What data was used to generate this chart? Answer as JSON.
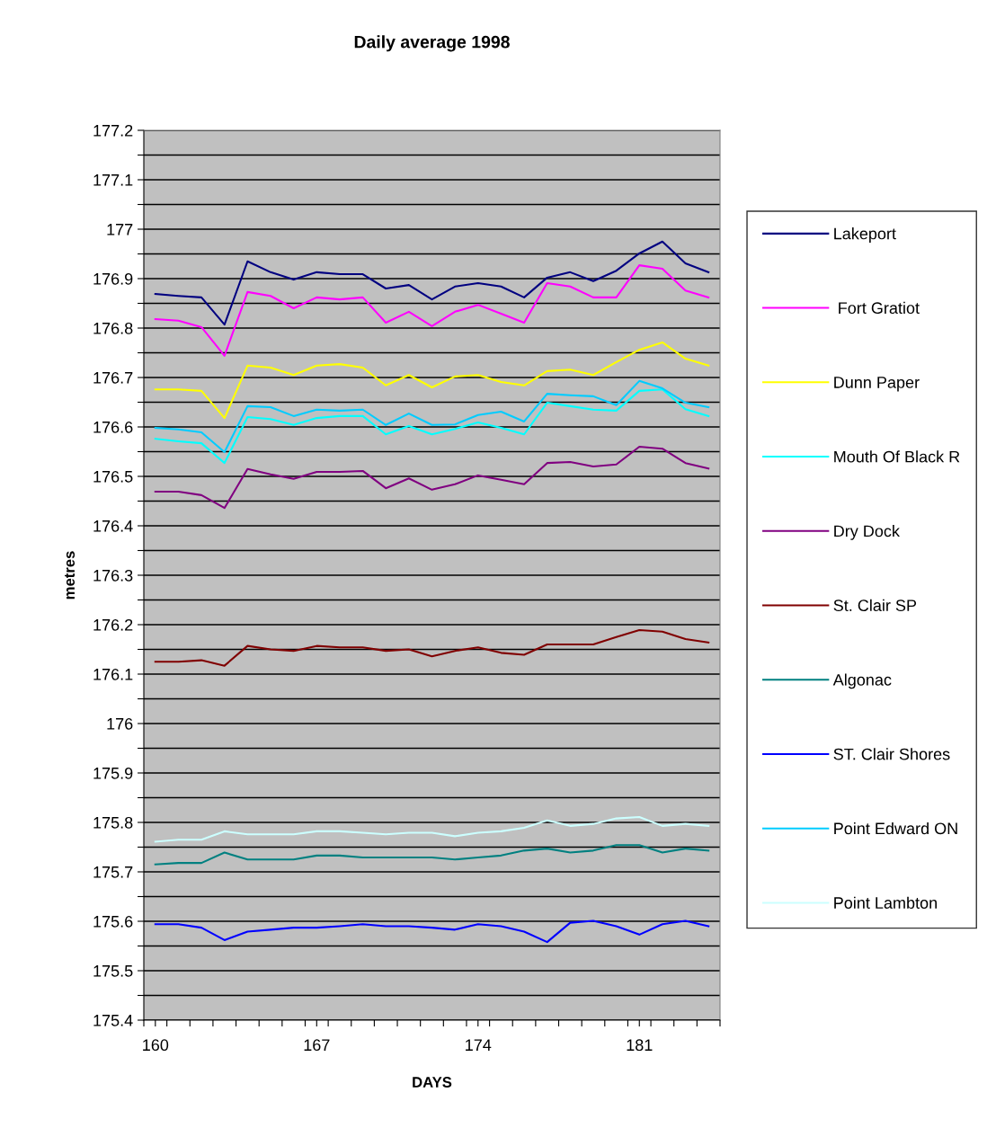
{
  "chart_data": {
    "type": "line",
    "title": "Daily average 1998",
    "xlabel": "DAYS",
    "ylabel": "metres",
    "x": [
      160,
      161,
      162,
      163,
      164,
      165,
      166,
      167,
      168,
      169,
      170,
      171,
      172,
      173,
      174,
      175,
      176,
      177,
      178,
      179,
      180,
      181,
      182,
      183,
      184
    ],
    "series": [
      {
        "name": "Lakeport",
        "color": "#000080",
        "values": [
          176.869,
          176.865,
          176.862,
          176.807,
          176.935,
          176.913,
          176.898,
          176.913,
          176.909,
          176.909,
          176.88,
          176.887,
          176.858,
          176.884,
          176.891,
          176.884,
          176.862,
          176.902,
          176.913,
          176.895,
          176.916,
          176.951,
          176.975,
          176.931,
          176.913
        ]
      },
      {
        "name": " Fort Gratiot",
        "color": "#ff00ff",
        "values": [
          176.818,
          176.815,
          176.802,
          176.744,
          176.873,
          176.865,
          176.84,
          176.862,
          176.858,
          176.862,
          176.811,
          176.833,
          176.804,
          176.833,
          176.847,
          176.829,
          176.811,
          176.891,
          176.884,
          176.862,
          176.862,
          176.927,
          176.92,
          176.876,
          176.862
        ]
      },
      {
        "name": "Dunn Paper",
        "color": "#ffff00",
        "values": [
          176.676,
          176.676,
          176.673,
          176.618,
          176.724,
          176.72,
          176.705,
          176.724,
          176.727,
          176.72,
          176.684,
          176.705,
          176.68,
          176.702,
          176.705,
          176.691,
          176.684,
          176.713,
          176.716,
          176.705,
          176.731,
          176.756,
          176.771,
          176.738,
          176.724
        ]
      },
      {
        "name": "Mouth Of Black R",
        "color": "#00ffff",
        "values": [
          176.576,
          176.571,
          176.567,
          176.527,
          176.62,
          176.616,
          176.604,
          176.618,
          176.622,
          176.622,
          176.585,
          176.602,
          176.585,
          176.596,
          176.609,
          176.598,
          176.585,
          176.649,
          176.642,
          176.635,
          176.633,
          176.673,
          176.676,
          176.636,
          176.622
        ]
      },
      {
        "name": "Dry Dock",
        "color": "#800080",
        "values": [
          176.469,
          176.469,
          176.462,
          176.436,
          176.515,
          176.504,
          176.495,
          176.509,
          176.509,
          176.511,
          176.476,
          176.496,
          176.473,
          176.484,
          176.502,
          176.493,
          176.484,
          176.527,
          176.529,
          176.52,
          176.524,
          176.56,
          176.556,
          176.527,
          176.516
        ]
      },
      {
        "name": "St. Clair SP",
        "color": "#800000",
        "values": [
          176.125,
          176.125,
          176.128,
          176.117,
          176.157,
          176.15,
          176.147,
          176.157,
          176.154,
          176.154,
          176.147,
          176.15,
          176.136,
          176.147,
          176.154,
          176.143,
          176.139,
          176.16,
          176.16,
          176.16,
          176.175,
          176.189,
          176.186,
          176.171,
          176.164
        ]
      },
      {
        "name": "Algonac",
        "color": "#008080",
        "values": [
          175.715,
          175.718,
          175.718,
          175.739,
          175.725,
          175.725,
          175.725,
          175.733,
          175.733,
          175.729,
          175.729,
          175.729,
          175.729,
          175.725,
          175.729,
          175.733,
          175.743,
          175.747,
          175.739,
          175.743,
          175.754,
          175.754,
          175.739,
          175.747,
          175.743
        ]
      },
      {
        "name": "ST. Clair Shores",
        "color": "#0000ff",
        "values": [
          175.594,
          175.594,
          175.587,
          175.562,
          175.579,
          175.583,
          175.587,
          175.587,
          175.59,
          175.594,
          175.59,
          175.59,
          175.587,
          175.583,
          175.594,
          175.59,
          175.579,
          175.558,
          175.597,
          175.601,
          175.59,
          175.573,
          175.594,
          175.601,
          175.59
        ]
      },
      {
        "name": "Point Edward ON",
        "color": "#00ccff",
        "values": [
          176.598,
          176.595,
          176.589,
          176.549,
          176.642,
          176.64,
          176.622,
          176.635,
          176.633,
          176.635,
          176.604,
          176.627,
          176.604,
          176.605,
          176.624,
          176.631,
          176.611,
          176.667,
          176.664,
          176.662,
          176.644,
          176.693,
          176.678,
          176.649,
          176.64
        ]
      },
      {
        "name": "Point Lambton",
        "color": "#ccffff",
        "values": [
          175.761,
          175.765,
          175.765,
          175.782,
          175.776,
          175.776,
          175.776,
          175.782,
          175.782,
          175.779,
          175.776,
          175.779,
          175.779,
          175.772,
          175.779,
          175.782,
          175.789,
          175.804,
          175.793,
          175.797,
          175.808,
          175.811,
          175.793,
          175.797,
          175.793
        ]
      }
    ],
    "xlim": [
      159.5,
      184.5
    ],
    "xticks": [
      160,
      167,
      174,
      181,
      {
        "value": 159.5,
        "label": null
      },
      {
        "value": 160.5,
        "label": null
      },
      {
        "value": 161.5,
        "label": null
      },
      {
        "value": 162.5,
        "label": null
      },
      {
        "value": 163.5,
        "label": null
      },
      {
        "value": 164.5,
        "label": null
      },
      {
        "value": 165.5,
        "label": null
      },
      {
        "value": 166.5,
        "label": null
      },
      {
        "value": 167.5,
        "label": null
      },
      {
        "value": 168.5,
        "label": null
      },
      {
        "value": 169.5,
        "label": null
      },
      {
        "value": 170.5,
        "label": null
      },
      {
        "value": 171.5,
        "label": null
      },
      {
        "value": 172.5,
        "label": null
      },
      {
        "value": 173.5,
        "label": null
      },
      {
        "value": 174.5,
        "label": null
      },
      {
        "value": 175.5,
        "label": null
      },
      {
        "value": 176.5,
        "label": null
      },
      {
        "value": 177.5,
        "label": null
      },
      {
        "value": 178.5,
        "label": null
      },
      {
        "value": 179.5,
        "label": null
      },
      {
        "value": 180.5,
        "label": null
      },
      {
        "value": 181.5,
        "label": null
      },
      {
        "value": 182.5,
        "label": null
      },
      {
        "value": 183.5,
        "label": null
      },
      {
        "value": 184.5,
        "label": null
      }
    ],
    "ylim": [
      175.4,
      177.2
    ],
    "yticks": [
      175.4,
      {
        "value": 175.45,
        "label": null
      },
      175.5,
      {
        "value": 175.55,
        "label": null
      },
      175.6,
      {
        "value": 175.65,
        "label": null
      },
      175.7,
      {
        "value": 175.75,
        "label": null
      },
      175.8,
      {
        "value": 175.85,
        "label": null
      },
      175.9,
      {
        "value": 175.95,
        "label": null
      },
      176,
      {
        "value": 176.05,
        "label": null
      },
      176.1,
      {
        "value": 176.15,
        "label": null
      },
      176.2,
      {
        "value": 176.25,
        "label": null
      },
      176.3,
      {
        "value": 176.35,
        "label": null
      },
      176.4,
      {
        "value": 176.45,
        "label": null
      },
      176.5,
      {
        "value": 176.55,
        "label": null
      },
      176.6,
      {
        "value": 176.65,
        "label": null
      },
      176.7,
      {
        "value": 176.75,
        "label": null
      },
      176.8,
      {
        "value": 176.85,
        "label": null
      },
      176.9,
      {
        "value": 176.95,
        "label": null
      },
      177,
      {
        "value": 177.05,
        "label": null
      },
      177.1,
      {
        "value": 177.15,
        "label": null
      },
      177.2
    ],
    "grid": "y",
    "legend": "right",
    "marker": "none",
    "line_style": "solid"
  }
}
